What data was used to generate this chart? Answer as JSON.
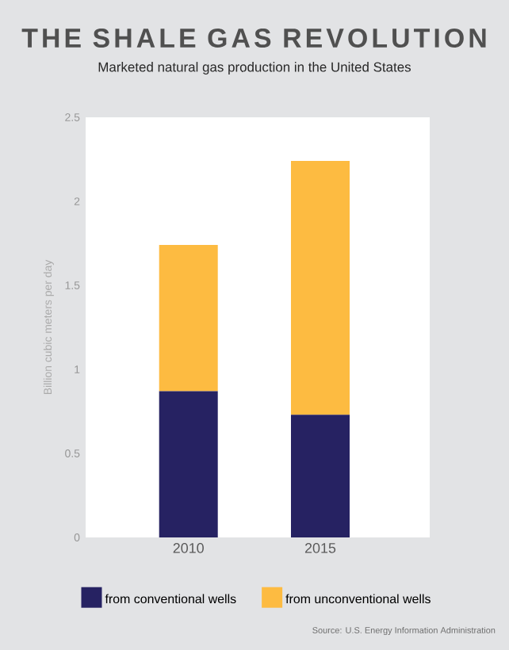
{
  "chart_data": {
    "type": "bar",
    "stacked": true,
    "title": "THE SHALE GAS REVOLUTION",
    "subtitle": "Marketed natural gas production in the United States",
    "ylabel": "Billion cubic meters per day",
    "categories": [
      "2010",
      "2015"
    ],
    "series": [
      {
        "name": "from conventional wells",
        "color": "#262262",
        "values": [
          0.87,
          0.73
        ]
      },
      {
        "name": "from unconventional wells",
        "color": "#fdbb41",
        "values": [
          0.87,
          1.51
        ]
      }
    ],
    "ylim": [
      0,
      2.5
    ],
    "yticks": [
      0,
      0.5,
      1,
      1.5,
      2,
      2.5
    ],
    "legend": "bottom",
    "annotations": [
      "Source: U.S. Energy Information Administration"
    ]
  }
}
